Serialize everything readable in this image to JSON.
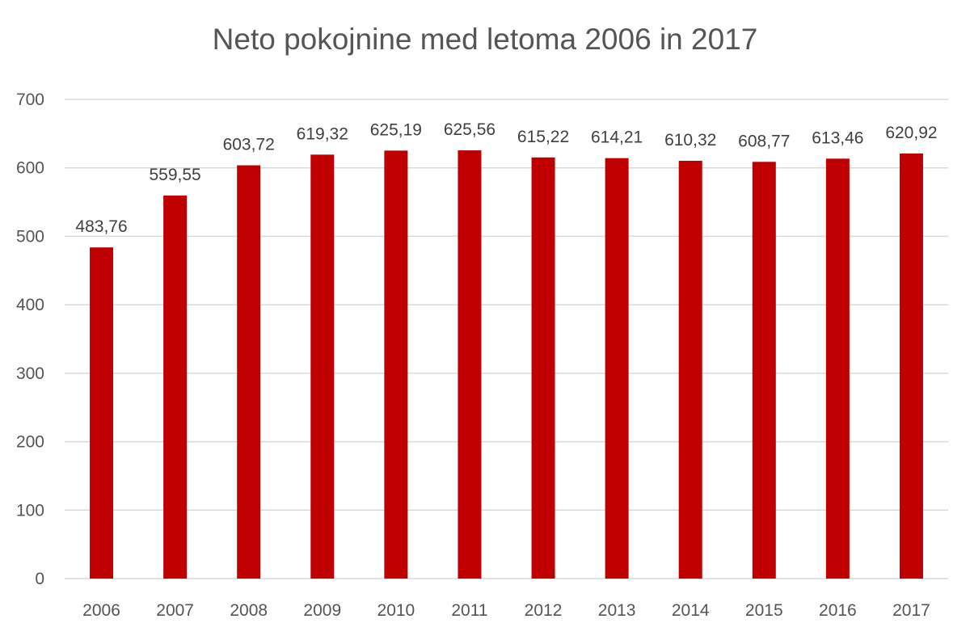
{
  "chart_data": {
    "type": "bar",
    "title": "Neto pokojnine med letoma 2006 in 2017",
    "categories": [
      "2006",
      "2007",
      "2008",
      "2009",
      "2010",
      "2011",
      "2012",
      "2013",
      "2014",
      "2015",
      "2016",
      "2017"
    ],
    "values": [
      483.76,
      559.55,
      603.72,
      619.32,
      625.19,
      625.56,
      615.22,
      614.21,
      610.32,
      608.77,
      613.46,
      620.92
    ],
    "data_labels": [
      "483,76",
      "559,55",
      "603,72",
      "619,32",
      "625,19",
      "625,56",
      "615,22",
      "614,21",
      "610,32",
      "608,77",
      "613,46",
      "620,92"
    ],
    "y_ticks": [
      "0",
      "100",
      "200",
      "300",
      "400",
      "500",
      "600",
      "700"
    ],
    "ylim": [
      0,
      700
    ],
    "xlabel": "",
    "ylabel": "",
    "grid": true,
    "legend": false,
    "bar_color": "#c00000"
  }
}
